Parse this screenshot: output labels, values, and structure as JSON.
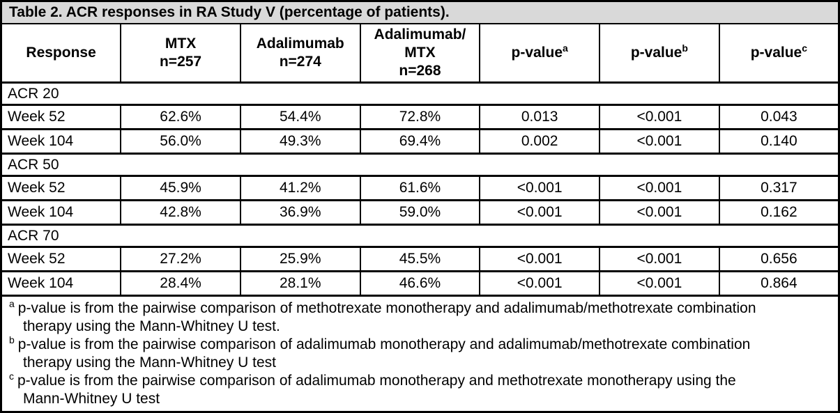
{
  "title": "Table 2. ACR responses in RA Study V (percentage of patients).",
  "header": {
    "response": "Response",
    "cols": [
      {
        "lines": [
          "MTX",
          "n=257"
        ]
      },
      {
        "lines": [
          "Adalimumab",
          "n=274"
        ]
      },
      {
        "lines": [
          "Adalimumab/",
          "MTX",
          "n=268"
        ]
      },
      {
        "base": "p-value",
        "sup": "a"
      },
      {
        "base": "p-value",
        "sup": "b"
      },
      {
        "base": "p-value",
        "sup": "c"
      }
    ]
  },
  "sections": [
    {
      "name": "ACR 20",
      "rows": [
        {
          "label": "Week 52",
          "values": [
            "62.6%",
            "54.4%",
            "72.8%",
            "0.013",
            "<0.001",
            "0.043"
          ]
        },
        {
          "label": "Week 104",
          "values": [
            "56.0%",
            "49.3%",
            "69.4%",
            "0.002",
            "<0.001",
            "0.140"
          ]
        }
      ]
    },
    {
      "name": "ACR 50",
      "rows": [
        {
          "label": "Week 52",
          "values": [
            "45.9%",
            "41.2%",
            "61.6%",
            "<0.001",
            "<0.001",
            "0.317"
          ]
        },
        {
          "label": "Week 104",
          "values": [
            "42.8%",
            "36.9%",
            "59.0%",
            "<0.001",
            "<0.001",
            "0.162"
          ]
        }
      ]
    },
    {
      "name": "ACR 70",
      "rows": [
        {
          "label": "Week 52",
          "values": [
            "27.2%",
            "25.9%",
            "45.5%",
            "<0.001",
            "<0.001",
            "0.656"
          ]
        },
        {
          "label": "Week 104",
          "values": [
            "28.4%",
            "28.1%",
            "46.6%",
            "<0.001",
            "<0.001",
            "0.864"
          ]
        }
      ]
    }
  ],
  "footnotes": [
    {
      "sup": "a",
      "lines": [
        "p-value is from the pairwise comparison of methotrexate monotherapy and adalimumab/methotrexate combination",
        "therapy using the Mann-Whitney U test."
      ]
    },
    {
      "sup": "b",
      "lines": [
        "p-value is from the pairwise comparison of adalimumab monotherapy and adalimumab/methotrexate combination",
        "therapy using the Mann-Whitney U test"
      ]
    },
    {
      "sup": "c",
      "lines": [
        "p-value is from the pairwise comparison of adalimumab monotherapy and methotrexate monotherapy using the",
        "Mann-Whitney U test"
      ]
    }
  ],
  "colors": {
    "title_bg": "#d9d9d9",
    "border": "#000000",
    "text": "#000000",
    "background": "#ffffff"
  }
}
